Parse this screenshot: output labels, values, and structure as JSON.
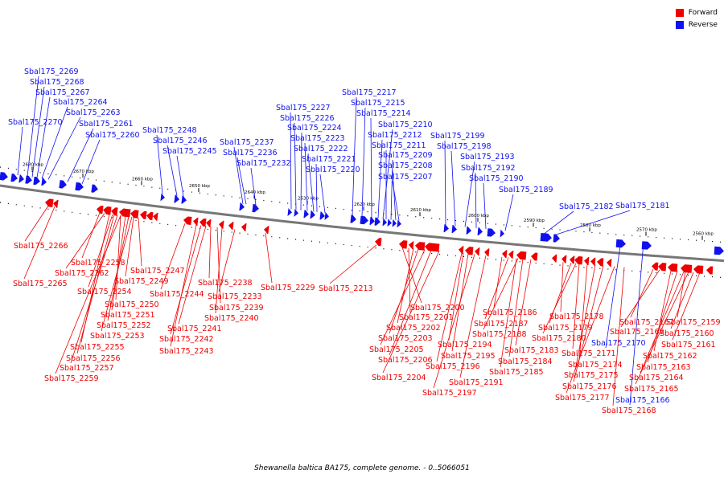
{
  "caption": "Shewanella baltica BA175, complete genome. - 0..5066051",
  "legend": {
    "items": [
      {
        "label": "Forward",
        "color": "#ee0000"
      },
      {
        "label": "Reverse",
        "color": "#1111ee"
      }
    ]
  },
  "colors": {
    "forward": "#ee0000",
    "reverse": "#1111ee",
    "backbone": "#777777"
  },
  "scale_ticks": [
    "2680 kbp",
    "2670 kbp",
    "2660 kbp",
    "2650 kbp",
    "2640 kbp",
    "2630 kbp",
    "2620 kbp",
    "2610 kbp",
    "2600 kbp",
    "2590 kbp",
    "2580 kbp",
    "2570 kbp",
    "2560 kbp"
  ],
  "reverse_genes": [
    "Sbal175_2269",
    "Sbal175_2268",
    "Sbal175_2267",
    "Sbal175_2264",
    "Sbal175_2263",
    "Sbal175_2270",
    "Sbal175_2261",
    "Sbal175_2260",
    "Sbal175_2248",
    "Sbal175_2246",
    "Sbal175_2245",
    "Sbal175_2227",
    "Sbal175_2226",
    "Sbal175_2237",
    "Sbal175_2236",
    "Sbal175_2224",
    "Sbal175_2223",
    "Sbal175_2222",
    "Sbal175_2232",
    "Sbal175_2221",
    "Sbal175_2220",
    "Sbal175_2217",
    "Sbal175_2215",
    "Sbal175_2214",
    "Sbal175_2210",
    "Sbal175_2212",
    "Sbal175_2211",
    "Sbal175_2209",
    "Sbal175_2208",
    "Sbal175_2207",
    "Sbal175_2199",
    "Sbal175_2198",
    "Sbal175_2193",
    "Sbal175_2192",
    "Sbal175_2190",
    "Sbal175_2189",
    "Sbal175_2182",
    "Sbal175_2181",
    "Sbal175_2170",
    "Sbal175_2166"
  ],
  "forward_genes": [
    "Sbal175_2266",
    "Sbal175_2265",
    "Sbal175_2258",
    "Sbal175_2262",
    "Sbal175_2247",
    "Sbal175_2254",
    "Sbal175_2249",
    "Sbal175_2250",
    "Sbal175_2251",
    "Sbal175_2252",
    "Sbal175_2253",
    "Sbal175_2255",
    "Sbal175_2256",
    "Sbal175_2257",
    "Sbal175_2259",
    "Sbal175_2244",
    "Sbal175_2238",
    "Sbal175_2233",
    "Sbal175_2239",
    "Sbal175_2240",
    "Sbal175_2241",
    "Sbal175_2242",
    "Sbal175_2243",
    "Sbal175_2229",
    "Sbal175_2213",
    "Sbal175_2200",
    "Sbal175_2201",
    "Sbal175_2202",
    "Sbal175_2203",
    "Sbal175_2205",
    "Sbal175_2206",
    "Sbal175_2204",
    "Sbal175_2194",
    "Sbal175_2195",
    "Sbal175_2196",
    "Sbal175_2191",
    "Sbal175_2197",
    "Sbal175_2186",
    "Sbal175_2187",
    "Sbal175_2188",
    "Sbal175_2183",
    "Sbal175_2184",
    "Sbal175_2185",
    "Sbal175_2178",
    "Sbal175_2179",
    "Sbal175_2180",
    "Sbal175_2171",
    "Sbal175_2174",
    "Sbal175_2175",
    "Sbal175_2176",
    "Sbal175_2177",
    "Sbal175_2167",
    "Sbal175_2169",
    "Sbal175_2159",
    "Sbal175_2160",
    "Sbal175_2161",
    "Sbal175_2162",
    "Sbal175_2163",
    "Sbal175_2164",
    "Sbal175_2165",
    "Sbal175_2168"
  ]
}
